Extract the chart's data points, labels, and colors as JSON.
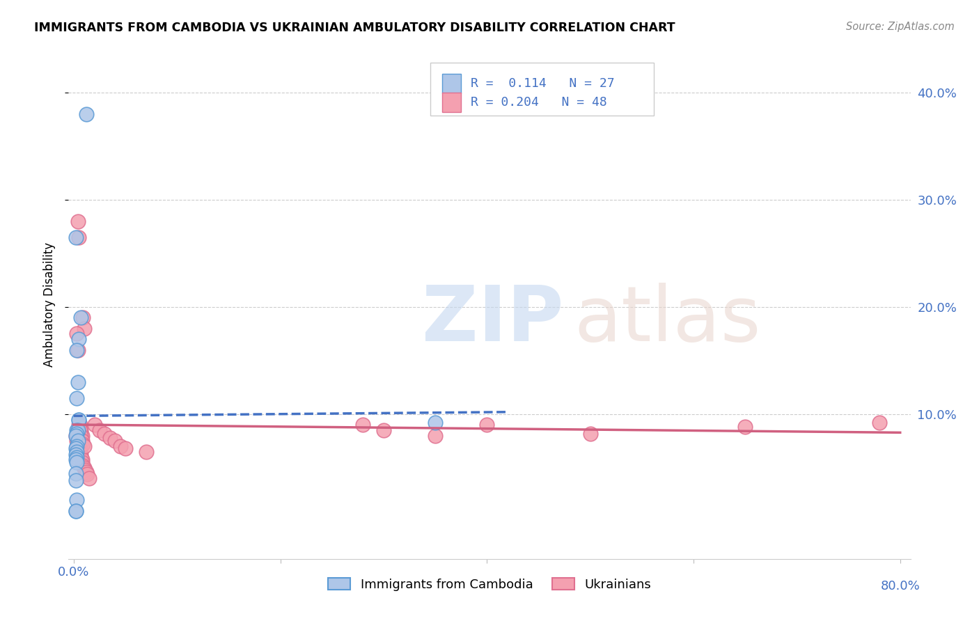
{
  "title": "IMMIGRANTS FROM CAMBODIA VS UKRAINIAN AMBULATORY DISABILITY CORRELATION CHART",
  "source": "Source: ZipAtlas.com",
  "ylabel": "Ambulatory Disability",
  "color_cambodia_fill": "#aec6e8",
  "color_cambodia_edge": "#5b9bd5",
  "color_ukraine_fill": "#f4a0b0",
  "color_ukraine_edge": "#e07090",
  "color_blue": "#4472c4",
  "color_pink": "#d06080",
  "color_axis_blue": "#4472c4",
  "color_text_blue": "#4472c4",
  "grid_color": "#cccccc",
  "background_color": "#ffffff",
  "legend_R1": "0.114",
  "legend_N1": "27",
  "legend_R2": "0.204",
  "legend_N2": "48",
  "cambodia_x": [
    0.005,
    0.012,
    0.002,
    0.005,
    0.003,
    0.007,
    0.005,
    0.003,
    0.004,
    0.003,
    0.004,
    0.003,
    0.002,
    0.004,
    0.003,
    0.002,
    0.003,
    0.002,
    0.003,
    0.002,
    0.003,
    0.002,
    0.002,
    0.003,
    0.002,
    0.35,
    0.002
  ],
  "cambodia_y": [
    0.095,
    0.38,
    0.265,
    0.095,
    0.085,
    0.19,
    0.17,
    0.16,
    0.13,
    0.115,
    0.085,
    0.082,
    0.08,
    0.075,
    0.07,
    0.068,
    0.065,
    0.062,
    0.06,
    0.058,
    0.055,
    0.045,
    0.038,
    0.02,
    0.01,
    0.092,
    0.01
  ],
  "ukraine_x": [
    0.002,
    0.003,
    0.003,
    0.004,
    0.005,
    0.005,
    0.006,
    0.006,
    0.007,
    0.007,
    0.008,
    0.008,
    0.009,
    0.01,
    0.011,
    0.012,
    0.013,
    0.015,
    0.004,
    0.005,
    0.006,
    0.007,
    0.008,
    0.009,
    0.01,
    0.003,
    0.004,
    0.005,
    0.006,
    0.007,
    0.008,
    0.009,
    0.01,
    0.02,
    0.025,
    0.03,
    0.035,
    0.04,
    0.045,
    0.05,
    0.07,
    0.28,
    0.3,
    0.35,
    0.4,
    0.5,
    0.65,
    0.78
  ],
  "ukraine_y": [
    0.08,
    0.08,
    0.075,
    0.073,
    0.072,
    0.07,
    0.068,
    0.065,
    0.063,
    0.06,
    0.058,
    0.055,
    0.052,
    0.05,
    0.048,
    0.046,
    0.044,
    0.04,
    0.28,
    0.265,
    0.09,
    0.085,
    0.08,
    0.19,
    0.18,
    0.175,
    0.16,
    0.09,
    0.085,
    0.08,
    0.075,
    0.072,
    0.07,
    0.09,
    0.085,
    0.082,
    0.078,
    0.075,
    0.07,
    0.068,
    0.065,
    0.09,
    0.085,
    0.08,
    0.09,
    0.082,
    0.088,
    0.092
  ],
  "xlim": [
    0.0,
    0.8
  ],
  "ylim": [
    -0.035,
    0.44
  ]
}
